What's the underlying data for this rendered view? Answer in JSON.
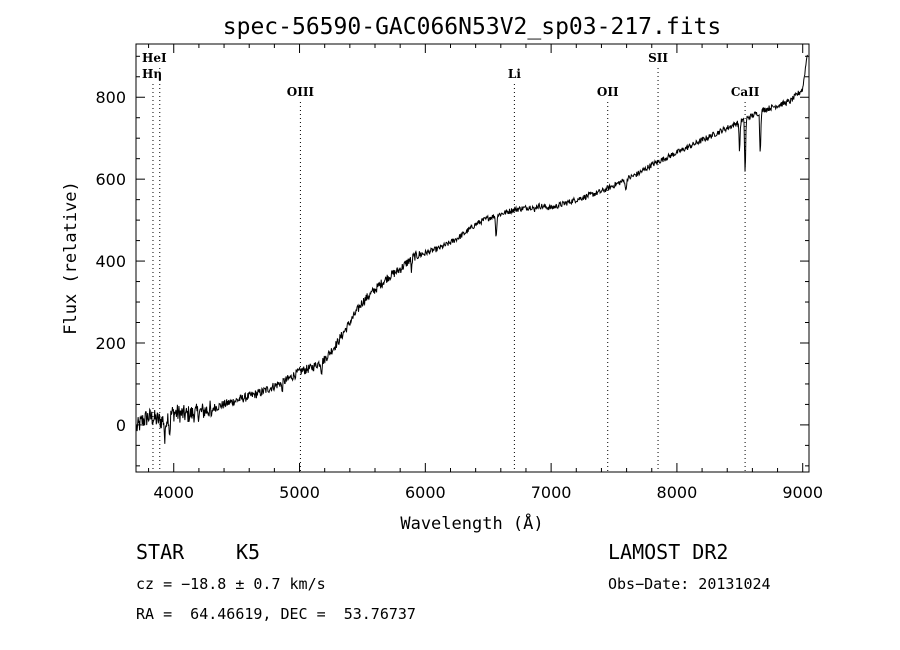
{
  "chart_data": {
    "type": "line",
    "title": "spec-56590-GAC066N53V2_sp03-217.fits",
    "xlabel": "Wavelength (Å)",
    "ylabel": "Flux (relative)",
    "xlim": [
      3700,
      9050
    ],
    "ylim": [
      -115,
      930
    ],
    "xticks": [
      4000,
      5000,
      6000,
      7000,
      8000,
      9000
    ],
    "yticks": [
      0,
      200,
      400,
      600,
      800
    ],
    "xtick_labels": [
      "4000",
      "5000",
      "6000",
      "7000",
      "8000",
      "9000"
    ],
    "ytick_labels": [
      "0",
      "200",
      "400",
      "600",
      "800"
    ],
    "grid": false,
    "series": [
      {
        "x": [
          3700,
          3750,
          3800,
          3850,
          3900,
          3950,
          4000,
          4100,
          4200,
          4300,
          4400,
          4500,
          4600,
          4700,
          4800,
          4900,
          5000,
          5100,
          5200,
          5300,
          5400,
          5500,
          5600,
          5700,
          5800,
          5900,
          6000,
          6100,
          6200,
          6300,
          6400,
          6500,
          6600,
          6700,
          6800,
          6900,
          7000,
          7100,
          7200,
          7300,
          7400,
          7500,
          7600,
          7700,
          7800,
          7900,
          8000,
          8100,
          8200,
          8300,
          8400,
          8500,
          8600,
          8700,
          8800,
          8900,
          9000
        ],
        "y": [
          -10,
          10,
          20,
          15,
          10,
          20,
          30,
          25,
          30,
          40,
          50,
          60,
          70,
          80,
          95,
          110,
          130,
          140,
          160,
          200,
          250,
          300,
          330,
          360,
          380,
          410,
          420,
          430,
          445,
          465,
          490,
          505,
          515,
          525,
          530,
          535,
          530,
          540,
          550,
          560,
          570,
          585,
          600,
          615,
          635,
          650,
          665,
          680,
          695,
          710,
          725,
          740,
          755,
          770,
          780,
          790,
          820
        ]
      }
    ],
    "features": [
      {
        "x": -1,
        "y": -1
      }
    ],
    "lines": [
      {
        "label": "HeI",
        "x": 3889,
        "row": 1
      },
      {
        "label": "Hη",
        "x": 3835,
        "row": 2
      },
      {
        "label": "OIII",
        "x": 5007,
        "row": 3
      },
      {
        "label": "Li",
        "x": 6708,
        "row": 2
      },
      {
        "label": "OII",
        "x": 7450,
        "row": 3
      },
      {
        "label": "SII",
        "x": 7850,
        "row": 1
      },
      {
        "label": "CaII",
        "x": 8542,
        "row": 3
      }
    ]
  },
  "info": {
    "class_label": "STAR",
    "subclass": "K5",
    "survey": "LAMOST DR2",
    "cz": "cz = −18.8 ± 0.7 km/s",
    "obs_date": "Obs−Date: 20131024",
    "coords": "RA =  64.46619, DEC =  53.76737"
  }
}
